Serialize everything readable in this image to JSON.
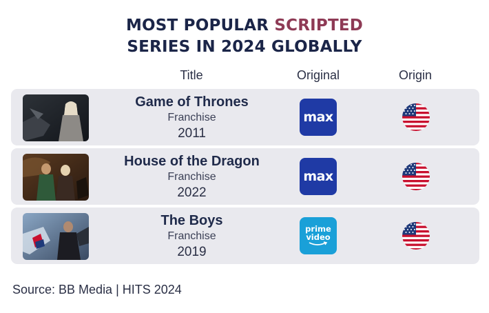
{
  "title": {
    "line1_prefix": "MOST POPULAR ",
    "line1_accent": "SCRIPTED",
    "line2": "SERIES IN 2024 GLOBALLY"
  },
  "columns": {
    "title": "Title",
    "original": "Original",
    "origin": "Origin"
  },
  "rows": [
    {
      "name": "Game of Thrones",
      "type": "Franchise",
      "year": "2011",
      "original": "max",
      "original_icon": "max-logo-icon",
      "origin_icon": "us-flag-icon"
    },
    {
      "name": "House of the Dragon",
      "type": "Franchise",
      "year": "2022",
      "original": "max",
      "original_icon": "max-logo-icon",
      "origin_icon": "us-flag-icon"
    },
    {
      "name": "The Boys",
      "type": "Franchise",
      "year": "2019",
      "original_line1": "prime",
      "original_line2": "video",
      "original_icon": "prime-video-logo-icon",
      "origin_icon": "us-flag-icon"
    }
  ],
  "source": "Source: BB Media | HITS 2024",
  "colors": {
    "navy": "#1b2548",
    "accent": "#8e3a55",
    "row_bg": "#e9e9ee",
    "max_blue": "#1f3aa5",
    "prime_blue": "#1aa0d8"
  }
}
